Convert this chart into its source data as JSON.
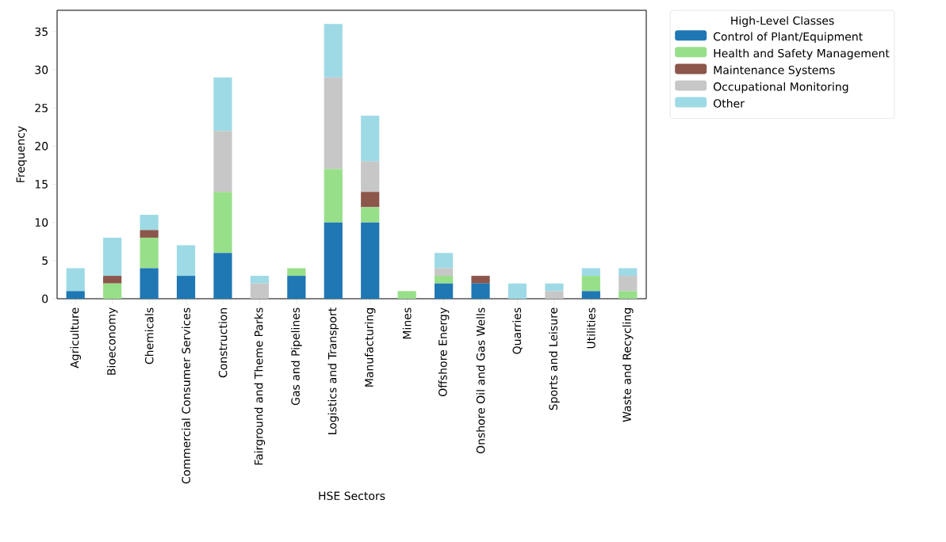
{
  "chart_data": {
    "type": "bar",
    "stacked": true,
    "xlabel": "HSE Sectors",
    "ylabel": "Frequency",
    "legend_title": "High-Level Classes",
    "legend": "top right",
    "categories": [
      "Agriculture",
      "Bioeconomy",
      "Chemicals",
      "Commercial Consumer Services",
      "Construction",
      "Fairground and Theme Parks",
      "Gas and Pipelines",
      "Logistics and Transport",
      "Manufacturing",
      "Mines",
      "Offshore Energy",
      "Onshore Oil and Gas Wells",
      "Quarries",
      "Sports and Leisure",
      "Utilities",
      "Waste and Recycling"
    ],
    "series": [
      {
        "name": "Control of Plant/Equipment",
        "color": "#1f77b4",
        "values": [
          1,
          0,
          4,
          3,
          6,
          0,
          3,
          10,
          10,
          0,
          2,
          2,
          0,
          0,
          1,
          0
        ]
      },
      {
        "name": "Health and Safety Management",
        "color": "#98df8a",
        "values": [
          0,
          2,
          4,
          0,
          8,
          0,
          1,
          7,
          2,
          1,
          1,
          0,
          0,
          0,
          2,
          1
        ]
      },
      {
        "name": "Maintenance Systems",
        "color": "#8c564b",
        "values": [
          0,
          1,
          1,
          0,
          0,
          0,
          0,
          0,
          2,
          0,
          0,
          1,
          0,
          0,
          0,
          0
        ]
      },
      {
        "name": "Occupational Monitoring",
        "color": "#c7c7c7",
        "values": [
          0,
          0,
          0,
          0,
          8,
          2,
          0,
          12,
          4,
          0,
          1,
          0,
          0,
          1,
          0,
          2
        ]
      },
      {
        "name": "Other",
        "color": "#9edae5",
        "values": [
          3,
          5,
          2,
          4,
          7,
          1,
          0,
          7,
          6,
          0,
          2,
          0,
          2,
          1,
          1,
          1
        ]
      }
    ],
    "ylim": [
      0,
      37.8
    ],
    "yticks": [
      0,
      5,
      10,
      15,
      20,
      25,
      30,
      35
    ],
    "grid": false
  }
}
